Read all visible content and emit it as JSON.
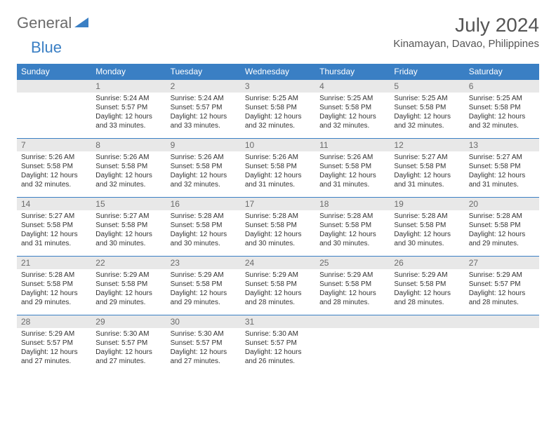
{
  "logo": {
    "general": "General",
    "blue": "Blue"
  },
  "title": "July 2024",
  "location": "Kinamayan, Davao, Philippines",
  "colors": {
    "header_bg": "#3a7fc4",
    "header_text": "#ffffff",
    "daynum_bg": "#e8e8e8",
    "daynum_text": "#6b6b6b",
    "body_text": "#333333",
    "rule": "#3a7fc4",
    "page_bg": "#ffffff"
  },
  "typography": {
    "month_title_fontsize": 28,
    "location_fontsize": 15,
    "weekday_fontsize": 12,
    "daynum_fontsize": 12,
    "cell_fontsize": 10
  },
  "weekdays": [
    "Sunday",
    "Monday",
    "Tuesday",
    "Wednesday",
    "Thursday",
    "Friday",
    "Saturday"
  ],
  "weeks": [
    [
      null,
      {
        "n": "1",
        "sr": "5:24 AM",
        "ss": "5:57 PM",
        "dl": "12 hours and 33 minutes."
      },
      {
        "n": "2",
        "sr": "5:24 AM",
        "ss": "5:57 PM",
        "dl": "12 hours and 33 minutes."
      },
      {
        "n": "3",
        "sr": "5:25 AM",
        "ss": "5:58 PM",
        "dl": "12 hours and 32 minutes."
      },
      {
        "n": "4",
        "sr": "5:25 AM",
        "ss": "5:58 PM",
        "dl": "12 hours and 32 minutes."
      },
      {
        "n": "5",
        "sr": "5:25 AM",
        "ss": "5:58 PM",
        "dl": "12 hours and 32 minutes."
      },
      {
        "n": "6",
        "sr": "5:25 AM",
        "ss": "5:58 PM",
        "dl": "12 hours and 32 minutes."
      }
    ],
    [
      {
        "n": "7",
        "sr": "5:26 AM",
        "ss": "5:58 PM",
        "dl": "12 hours and 32 minutes."
      },
      {
        "n": "8",
        "sr": "5:26 AM",
        "ss": "5:58 PM",
        "dl": "12 hours and 32 minutes."
      },
      {
        "n": "9",
        "sr": "5:26 AM",
        "ss": "5:58 PM",
        "dl": "12 hours and 32 minutes."
      },
      {
        "n": "10",
        "sr": "5:26 AM",
        "ss": "5:58 PM",
        "dl": "12 hours and 31 minutes."
      },
      {
        "n": "11",
        "sr": "5:26 AM",
        "ss": "5:58 PM",
        "dl": "12 hours and 31 minutes."
      },
      {
        "n": "12",
        "sr": "5:27 AM",
        "ss": "5:58 PM",
        "dl": "12 hours and 31 minutes."
      },
      {
        "n": "13",
        "sr": "5:27 AM",
        "ss": "5:58 PM",
        "dl": "12 hours and 31 minutes."
      }
    ],
    [
      {
        "n": "14",
        "sr": "5:27 AM",
        "ss": "5:58 PM",
        "dl": "12 hours and 31 minutes."
      },
      {
        "n": "15",
        "sr": "5:27 AM",
        "ss": "5:58 PM",
        "dl": "12 hours and 30 minutes."
      },
      {
        "n": "16",
        "sr": "5:28 AM",
        "ss": "5:58 PM",
        "dl": "12 hours and 30 minutes."
      },
      {
        "n": "17",
        "sr": "5:28 AM",
        "ss": "5:58 PM",
        "dl": "12 hours and 30 minutes."
      },
      {
        "n": "18",
        "sr": "5:28 AM",
        "ss": "5:58 PM",
        "dl": "12 hours and 30 minutes."
      },
      {
        "n": "19",
        "sr": "5:28 AM",
        "ss": "5:58 PM",
        "dl": "12 hours and 30 minutes."
      },
      {
        "n": "20",
        "sr": "5:28 AM",
        "ss": "5:58 PM",
        "dl": "12 hours and 29 minutes."
      }
    ],
    [
      {
        "n": "21",
        "sr": "5:28 AM",
        "ss": "5:58 PM",
        "dl": "12 hours and 29 minutes."
      },
      {
        "n": "22",
        "sr": "5:29 AM",
        "ss": "5:58 PM",
        "dl": "12 hours and 29 minutes."
      },
      {
        "n": "23",
        "sr": "5:29 AM",
        "ss": "5:58 PM",
        "dl": "12 hours and 29 minutes."
      },
      {
        "n": "24",
        "sr": "5:29 AM",
        "ss": "5:58 PM",
        "dl": "12 hours and 28 minutes."
      },
      {
        "n": "25",
        "sr": "5:29 AM",
        "ss": "5:58 PM",
        "dl": "12 hours and 28 minutes."
      },
      {
        "n": "26",
        "sr": "5:29 AM",
        "ss": "5:58 PM",
        "dl": "12 hours and 28 minutes."
      },
      {
        "n": "27",
        "sr": "5:29 AM",
        "ss": "5:57 PM",
        "dl": "12 hours and 28 minutes."
      }
    ],
    [
      {
        "n": "28",
        "sr": "5:29 AM",
        "ss": "5:57 PM",
        "dl": "12 hours and 27 minutes."
      },
      {
        "n": "29",
        "sr": "5:30 AM",
        "ss": "5:57 PM",
        "dl": "12 hours and 27 minutes."
      },
      {
        "n": "30",
        "sr": "5:30 AM",
        "ss": "5:57 PM",
        "dl": "12 hours and 27 minutes."
      },
      {
        "n": "31",
        "sr": "5:30 AM",
        "ss": "5:57 PM",
        "dl": "12 hours and 26 minutes."
      },
      null,
      null,
      null
    ]
  ],
  "labels": {
    "sunrise": "Sunrise:",
    "sunset": "Sunset:",
    "daylight": "Daylight:"
  }
}
